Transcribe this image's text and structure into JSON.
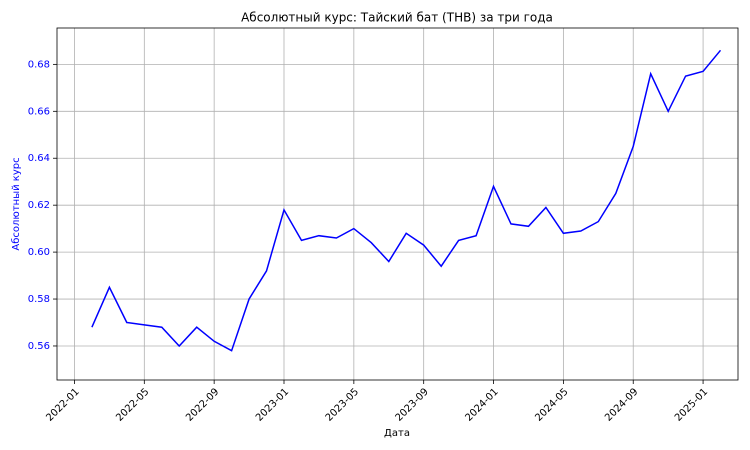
{
  "chart_data": {
    "type": "line",
    "title": "Абсолютный курс: Тайский бат (THB) за три года",
    "x_label": "Дата",
    "y_label": "Абсолютный курс",
    "x": [
      "2022-02",
      "2022-03",
      "2022-04",
      "2022-05",
      "2022-06",
      "2022-07",
      "2022-08",
      "2022-09",
      "2022-10",
      "2022-11",
      "2022-12",
      "2023-01",
      "2023-02",
      "2023-03",
      "2023-04",
      "2023-05",
      "2023-06",
      "2023-07",
      "2023-08",
      "2023-09",
      "2023-10",
      "2023-11",
      "2023-12",
      "2024-01",
      "2024-02",
      "2024-03",
      "2024-04",
      "2024-05",
      "2024-06",
      "2024-07",
      "2024-08",
      "2024-09",
      "2024-10",
      "2024-11",
      "2024-12",
      "2025-01",
      "2025-02"
    ],
    "series": [
      {
        "name": "THB",
        "color": "#0000ff",
        "values": [
          0.568,
          0.585,
          0.57,
          0.569,
          0.568,
          0.56,
          0.568,
          0.562,
          0.558,
          0.58,
          0.592,
          0.618,
          0.605,
          0.607,
          0.606,
          0.61,
          0.604,
          0.596,
          0.608,
          0.603,
          0.594,
          0.605,
          0.607,
          0.628,
          0.612,
          0.611,
          0.619,
          0.608,
          0.609,
          0.613,
          0.625,
          0.645,
          0.676,
          0.66,
          0.675,
          0.677,
          0.686
        ]
      }
    ],
    "xlim": [
      "2021-12",
      "2025-03"
    ],
    "xticks": [
      "2022-01",
      "2022-05",
      "2022-09",
      "2023-01",
      "2023-05",
      "2023-09",
      "2024-01",
      "2024-05",
      "2024-09",
      "2025-01"
    ],
    "ylim": [
      0.5455,
      0.6955
    ],
    "yticks": [
      0.56,
      0.58,
      {
        "value": 0.6,
        "label": "0.60"
      },
      0.62,
      0.64,
      0.66,
      0.68
    ],
    "grid": true,
    "axis_label_color": "#0000ff"
  }
}
